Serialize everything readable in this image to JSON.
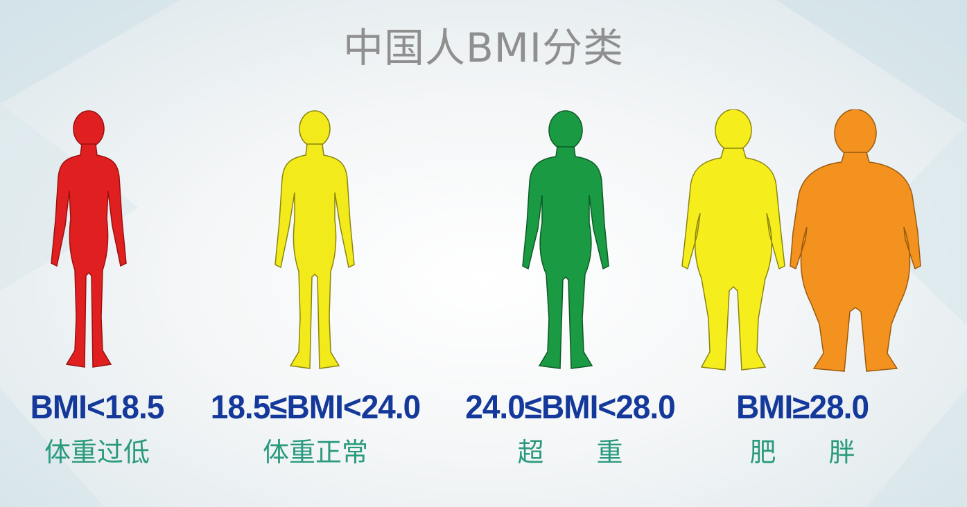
{
  "title": "中国人BMI分类",
  "colors": {
    "underweight": "#e02020",
    "normal": "#f2ea1a",
    "overweight": "#1b9a44",
    "obese_1": "#f6ee1c",
    "obese_2": "#f3921e",
    "range_text": "#15399a",
    "label_text": "#2a9a7e"
  },
  "categories": [
    {
      "range": "BMI<18.5",
      "label": "体重过低"
    },
    {
      "range": "18.5≤BMI<24.0",
      "label": "体重正常"
    },
    {
      "range": "24.0≤BMI<28.0",
      "label": "超　　重"
    },
    {
      "range": "BMI≥28.0",
      "label": "肥　　胖"
    }
  ]
}
